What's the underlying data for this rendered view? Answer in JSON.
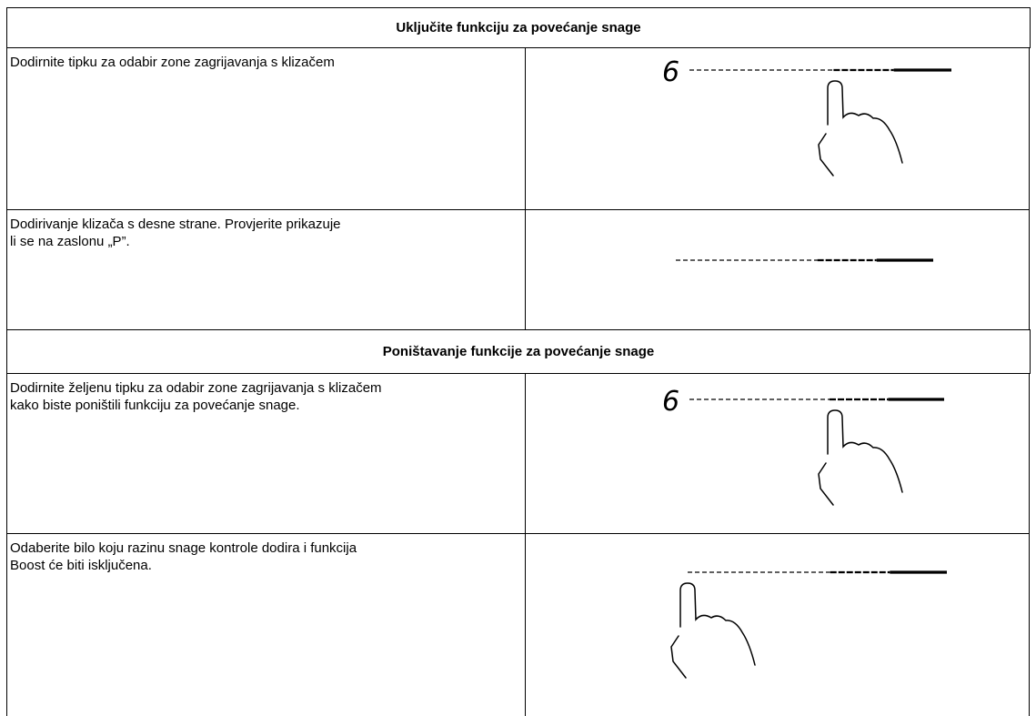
{
  "sections": [
    {
      "title": "Uključite funkciju za povećanje snage",
      "rows": [
        {
          "text": [
            "Dodirnite tipku za odabir zone zagrijavanja s klizačem"
          ],
          "display": "6"
        },
        {
          "text": [
            "Dodirivanje klizača s desne strane. Provjerite prikazuje",
            "li se na zaslonu „P”."
          ]
        }
      ]
    },
    {
      "title": "Poništavanje funkcije za povećanje snage",
      "rows": [
        {
          "text": [
            "Dodirnite željenu tipku za odabir zone zagrijavanja s klizačem",
            "kako biste poništili funkciju za povećanje snage."
          ],
          "display": "6"
        },
        {
          "text": [
            "Odaberite bilo koju razinu snage kontrole dodira i funkcija",
            "Boost će biti isključena."
          ]
        }
      ]
    }
  ]
}
